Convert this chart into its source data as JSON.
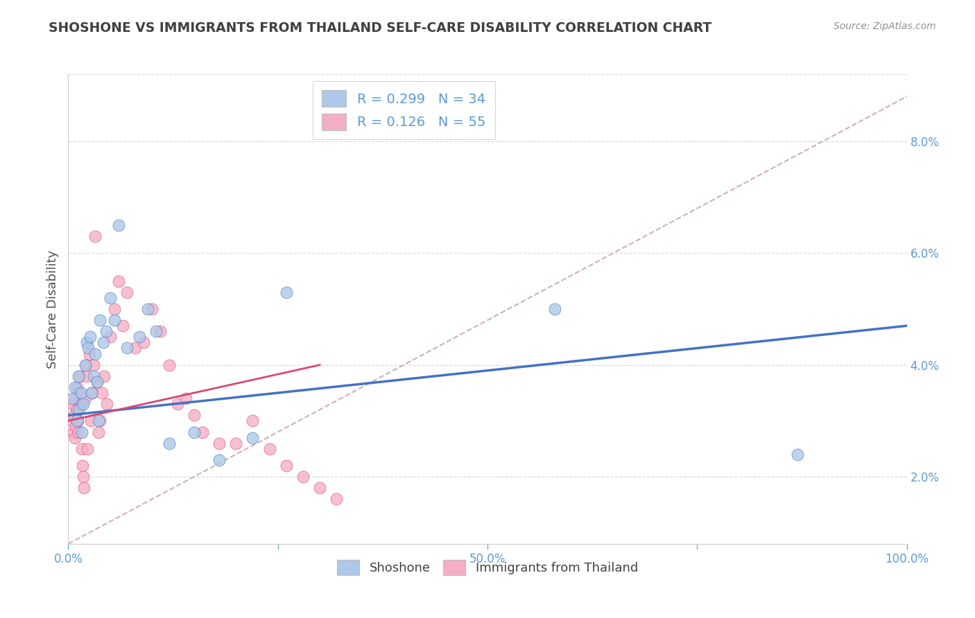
{
  "title": "SHOSHONE VS IMMIGRANTS FROM THAILAND SELF-CARE DISABILITY CORRELATION CHART",
  "source": "Source: ZipAtlas.com",
  "ylabel": "Self-Care Disability",
  "xlim": [
    0,
    1.0
  ],
  "ylim": [
    0.008,
    0.092
  ],
  "yticks": [
    0.02,
    0.04,
    0.06,
    0.08
  ],
  "ytick_labels": [
    "2.0%",
    "4.0%",
    "6.0%",
    "8.0%"
  ],
  "xticks": [
    0.0,
    0.25,
    0.5,
    0.75,
    1.0
  ],
  "xtick_labels": [
    "0.0%",
    "",
    "50.0%",
    "",
    "100.0%"
  ],
  "shoshone_R": 0.299,
  "shoshone_N": 34,
  "thailand_R": 0.126,
  "thailand_N": 55,
  "shoshone_color": "#adc8e8",
  "thailand_color": "#f5afc5",
  "shoshone_line_color": "#4472c4",
  "thailand_line_color": "#d94870",
  "ref_line_color": "#d0b0b8",
  "background_color": "#ffffff",
  "grid_color": "#d8d8ec",
  "title_color": "#404040",
  "axis_color": "#5b9bd5",
  "shoshone_x": [
    0.005,
    0.008,
    0.01,
    0.012,
    0.013,
    0.015,
    0.016,
    0.018,
    0.02,
    0.022,
    0.024,
    0.026,
    0.028,
    0.03,
    0.032,
    0.034,
    0.036,
    0.038,
    0.042,
    0.045,
    0.05,
    0.055,
    0.06,
    0.07,
    0.085,
    0.095,
    0.105,
    0.12,
    0.15,
    0.18,
    0.22,
    0.26,
    0.58,
    0.87
  ],
  "shoshone_y": [
    0.034,
    0.036,
    0.03,
    0.038,
    0.032,
    0.035,
    0.028,
    0.033,
    0.04,
    0.044,
    0.043,
    0.045,
    0.035,
    0.038,
    0.042,
    0.037,
    0.03,
    0.048,
    0.044,
    0.046,
    0.052,
    0.048,
    0.065,
    0.043,
    0.045,
    0.05,
    0.046,
    0.026,
    0.028,
    0.023,
    0.027,
    0.053,
    0.05,
    0.024
  ],
  "thailand_x": [
    0.004,
    0.005,
    0.006,
    0.007,
    0.008,
    0.008,
    0.009,
    0.01,
    0.01,
    0.011,
    0.012,
    0.013,
    0.014,
    0.015,
    0.016,
    0.017,
    0.018,
    0.019,
    0.02,
    0.021,
    0.022,
    0.023,
    0.025,
    0.027,
    0.029,
    0.03,
    0.032,
    0.034,
    0.036,
    0.038,
    0.04,
    0.043,
    0.046,
    0.05,
    0.055,
    0.06,
    0.065,
    0.07,
    0.08,
    0.09,
    0.1,
    0.11,
    0.12,
    0.13,
    0.14,
    0.15,
    0.16,
    0.18,
    0.2,
    0.22,
    0.24,
    0.26,
    0.28,
    0.3,
    0.32
  ],
  "thailand_y": [
    0.03,
    0.033,
    0.028,
    0.031,
    0.034,
    0.027,
    0.029,
    0.032,
    0.036,
    0.03,
    0.028,
    0.035,
    0.038,
    0.033,
    0.025,
    0.022,
    0.02,
    0.018,
    0.034,
    0.04,
    0.038,
    0.025,
    0.042,
    0.03,
    0.035,
    0.04,
    0.063,
    0.037,
    0.028,
    0.03,
    0.035,
    0.038,
    0.033,
    0.045,
    0.05,
    0.055,
    0.047,
    0.053,
    0.043,
    0.044,
    0.05,
    0.046,
    0.04,
    0.033,
    0.034,
    0.031,
    0.028,
    0.026,
    0.026,
    0.03,
    0.025,
    0.022,
    0.02,
    0.018,
    0.016
  ],
  "shoshone_line_x0": 0.0,
  "shoshone_line_y0": 0.031,
  "shoshone_line_x1": 1.0,
  "shoshone_line_y1": 0.047,
  "thailand_line_x0": 0.0,
  "thailand_line_y0": 0.03,
  "thailand_line_x1": 0.3,
  "thailand_line_y1": 0.04,
  "ref_line_x0": 0.0,
  "ref_line_y0": 0.008,
  "ref_line_x1": 1.0,
  "ref_line_y1": 0.088
}
